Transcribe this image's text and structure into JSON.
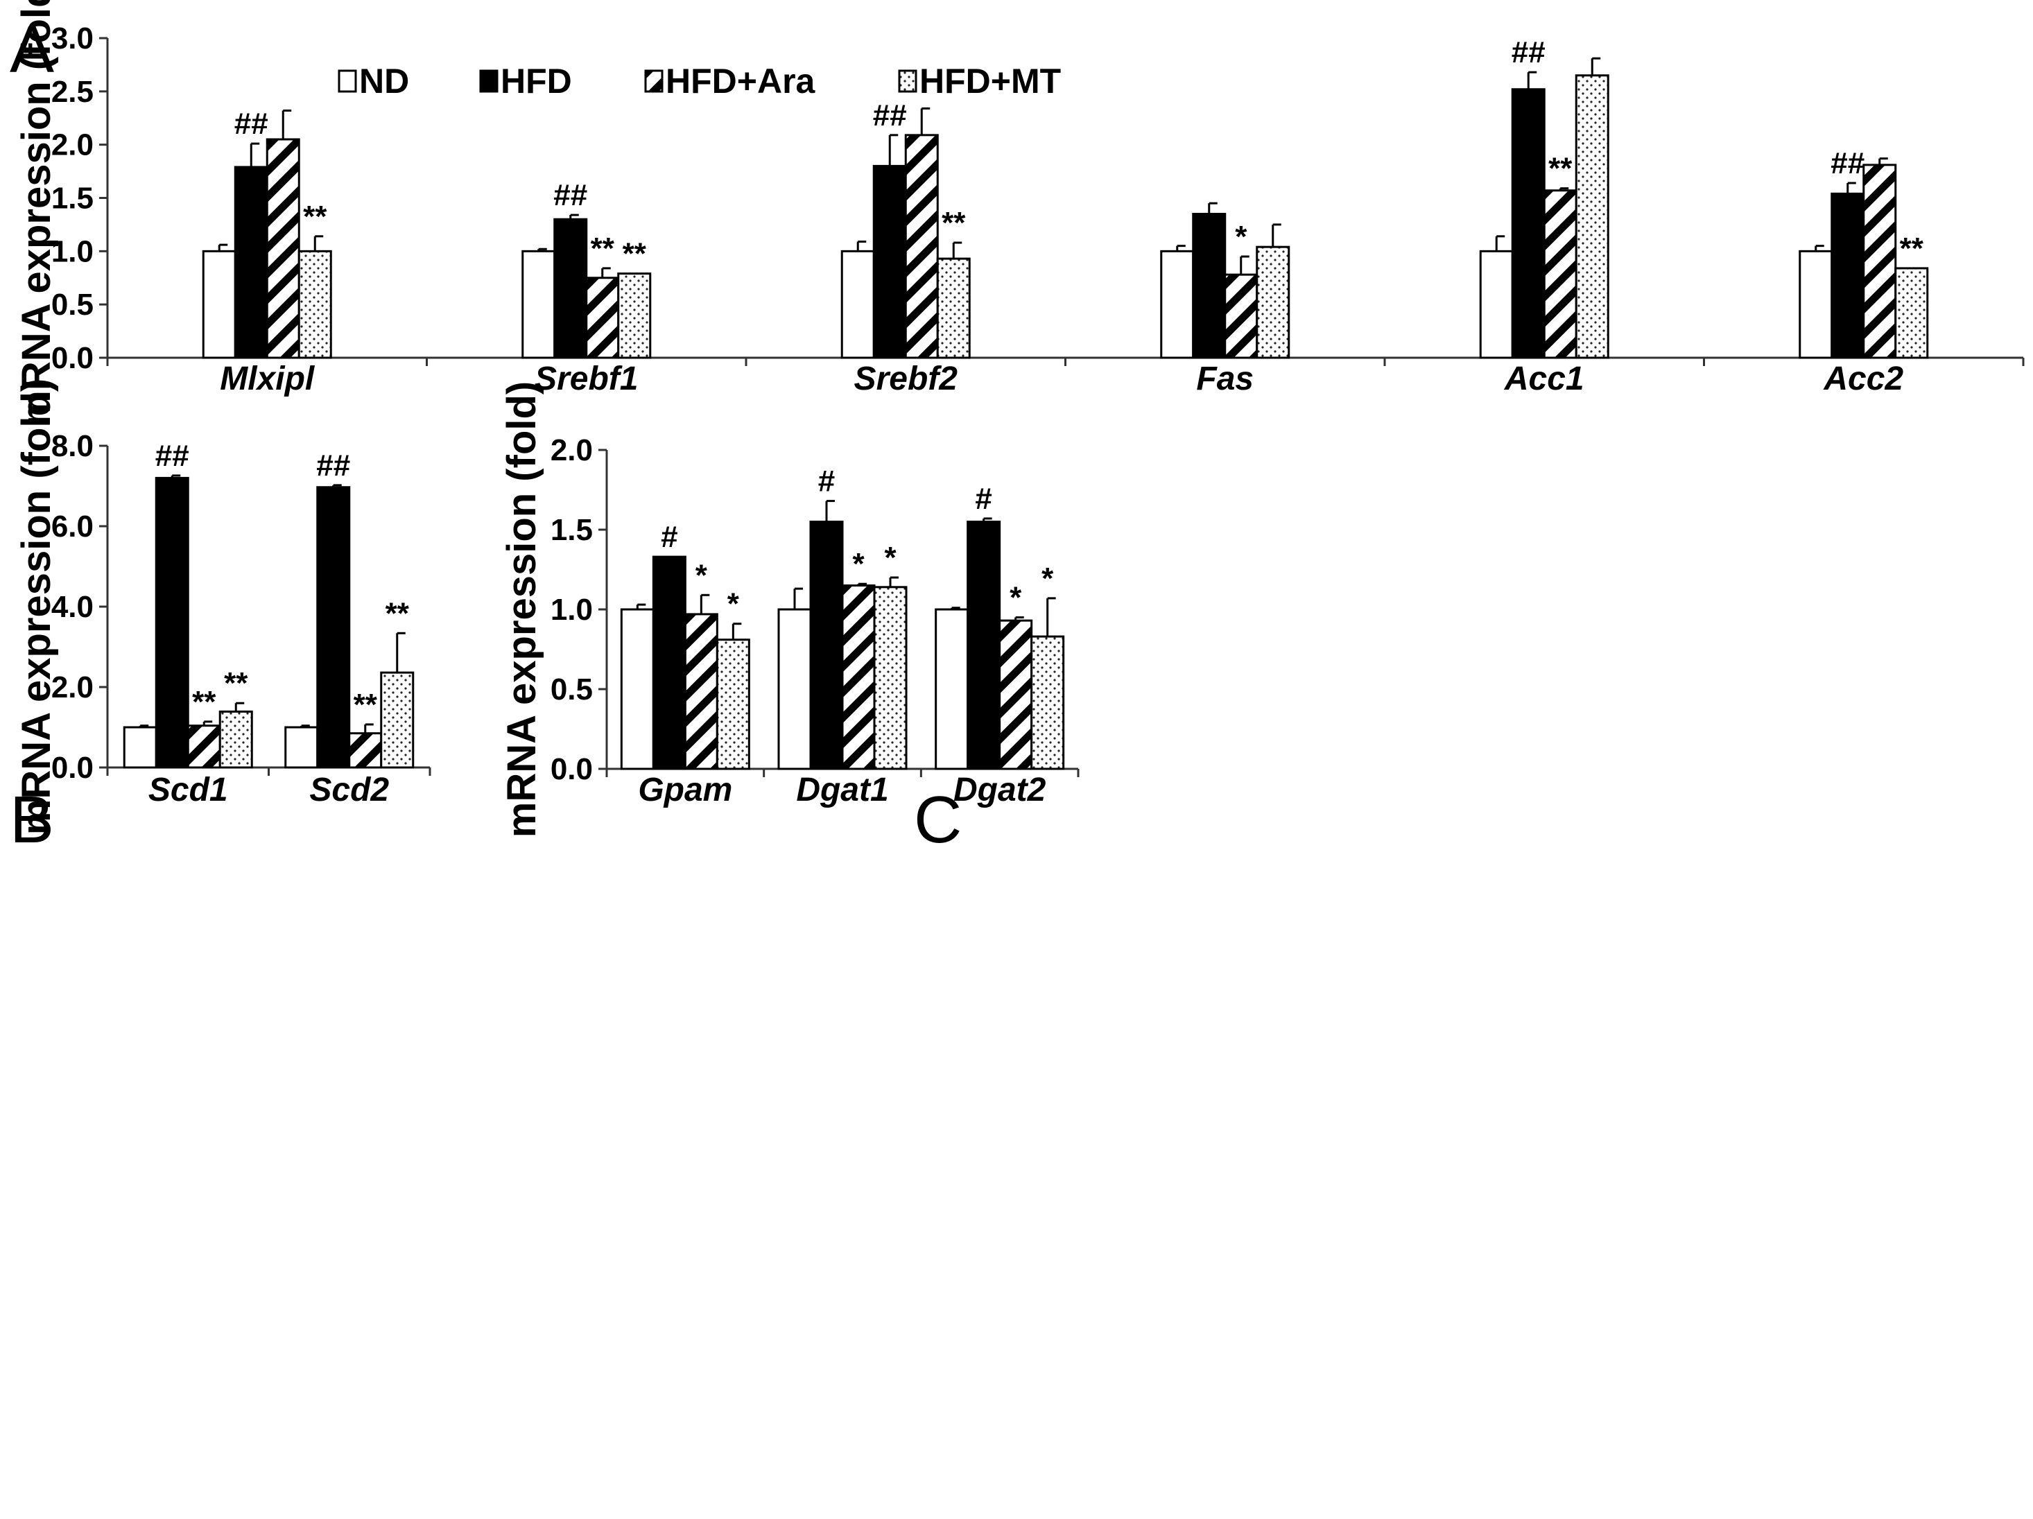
{
  "legend": [
    {
      "name": "ND",
      "pattern": "white"
    },
    {
      "name": "HFD",
      "pattern": "black"
    },
    {
      "name": "HFD+Ara",
      "pattern": "hatch"
    },
    {
      "name": "HFD+MT",
      "pattern": "dots"
    }
  ],
  "chart_data": [
    {
      "panel": "A",
      "type": "bar",
      "title": "",
      "xlabel": "",
      "ylabel": "mRNA expression (fold)",
      "ylim": [
        0,
        3.0
      ],
      "yticks": [
        0,
        0.5,
        1.0,
        1.5,
        2.0,
        2.5,
        3.0
      ],
      "ytick_labels": [
        "0.0",
        "0.5",
        "1.0",
        "1.5",
        "2.0",
        "2.5",
        "3.0"
      ],
      "categories": [
        "Mlxipl",
        "Srebf1",
        "Srebf2",
        "Fas",
        "Acc1",
        "Acc2"
      ],
      "series": [
        {
          "name": "ND",
          "values": [
            1.0,
            1.0,
            1.0,
            1.0,
            1.0,
            1.0
          ],
          "errors": [
            0.06,
            0.02,
            0.09,
            0.05,
            0.14,
            0.05
          ],
          "sig": [
            "",
            "",
            "",
            "",
            "",
            ""
          ]
        },
        {
          "name": "HFD",
          "values": [
            1.79,
            1.3,
            1.8,
            1.35,
            2.52,
            1.54
          ],
          "errors": [
            0.22,
            0.04,
            0.29,
            0.1,
            0.16,
            0.1
          ],
          "sig": [
            "##",
            "##",
            "##",
            "",
            "##",
            "##"
          ]
        },
        {
          "name": "HFD+Ara",
          "values": [
            2.05,
            0.75,
            2.09,
            0.78,
            1.57,
            1.81
          ],
          "errors": [
            0.27,
            0.09,
            0.25,
            0.17,
            0.02,
            0.06
          ],
          "sig": [
            "",
            "**",
            "",
            "*",
            "**",
            ""
          ]
        },
        {
          "name": "HFD+MT",
          "values": [
            1.0,
            0.79,
            0.93,
            1.04,
            2.65,
            0.84
          ],
          "errors": [
            0.14,
            0.0,
            0.15,
            0.21,
            0.16,
            0.0
          ],
          "sig": [
            "**",
            "**",
            "**",
            "",
            "",
            "**"
          ]
        }
      ]
    },
    {
      "panel": "B",
      "type": "bar",
      "title": "",
      "xlabel": "",
      "ylabel": "mRNA expression (fold)",
      "ylim": [
        0,
        8.0
      ],
      "yticks": [
        0,
        2,
        4,
        6,
        8
      ],
      "ytick_labels": [
        "0.0",
        "2.0",
        "4.0",
        "6.0",
        "8.0"
      ],
      "categories": [
        "Scd1",
        "Scd2"
      ],
      "series": [
        {
          "name": "ND",
          "values": [
            1.0,
            1.0
          ],
          "errors": [
            0.04,
            0.04
          ],
          "sig": [
            "",
            ""
          ]
        },
        {
          "name": "HFD",
          "values": [
            7.2,
            6.97
          ],
          "errors": [
            0.06,
            0.05
          ],
          "sig": [
            "##",
            "##"
          ]
        },
        {
          "name": "HFD+Ara",
          "values": [
            1.04,
            0.85
          ],
          "errors": [
            0.1,
            0.22
          ],
          "sig": [
            "**",
            "**"
          ]
        },
        {
          "name": "HFD+MT",
          "values": [
            1.39,
            2.36
          ],
          "errors": [
            0.21,
            0.98
          ],
          "sig": [
            "**",
            "**"
          ]
        }
      ]
    },
    {
      "panel": "C",
      "type": "bar",
      "title": "",
      "xlabel": "",
      "ylabel": "mRNA expression (fold)",
      "ylim": [
        0,
        2.0
      ],
      "yticks": [
        0,
        0.5,
        1.0,
        1.5,
        2.0
      ],
      "ytick_labels": [
        "0.0",
        "0.5",
        "1.0",
        "1.5",
        "2.0"
      ],
      "categories": [
        "Gpam",
        "Dgat1",
        "Dgat2"
      ],
      "series": [
        {
          "name": "ND",
          "values": [
            1.0,
            1.0,
            1.0
          ],
          "errors": [
            0.03,
            0.13,
            0.01
          ],
          "sig": [
            "",
            "",
            ""
          ]
        },
        {
          "name": "HFD",
          "values": [
            1.33,
            1.55,
            1.55
          ],
          "errors": [
            0.0,
            0.13,
            0.02
          ],
          "sig": [
            "#",
            "#",
            "#"
          ]
        },
        {
          "name": "HFD+Ara",
          "values": [
            0.97,
            1.15,
            0.93
          ],
          "errors": [
            0.12,
            0.01,
            0.02
          ],
          "sig": [
            "*",
            "*",
            "*"
          ]
        },
        {
          "name": "HFD+MT",
          "values": [
            0.81,
            1.14,
            0.83
          ],
          "errors": [
            0.1,
            0.06,
            0.24
          ],
          "sig": [
            "*",
            "*",
            "*"
          ]
        }
      ]
    }
  ]
}
